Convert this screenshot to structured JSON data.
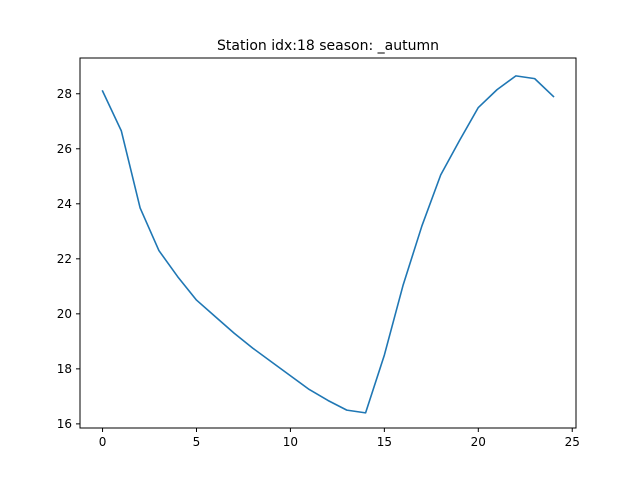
{
  "chart_data": {
    "type": "line",
    "title": "Station idx:18 season: _autumn",
    "xlabel": "",
    "ylabel": "",
    "xlim": [
      -1.2,
      25.2
    ],
    "ylim": [
      15.85,
      29.3
    ],
    "xticks": [
      0,
      5,
      10,
      15,
      20,
      25
    ],
    "yticks": [
      16,
      18,
      20,
      22,
      24,
      26,
      28
    ],
    "grid": false,
    "series": [
      {
        "color": "#1f77b4",
        "x": [
          0,
          1,
          2,
          3,
          4,
          5,
          6,
          7,
          8,
          9,
          10,
          11,
          12,
          13,
          14,
          15,
          16,
          17,
          18,
          19,
          20,
          21,
          22,
          23,
          24
        ],
        "y": [
          28.1,
          26.65,
          23.85,
          22.3,
          21.35,
          20.5,
          19.9,
          19.3,
          18.75,
          18.25,
          17.75,
          17.25,
          16.85,
          16.5,
          16.4,
          18.5,
          21.05,
          23.2,
          25.05,
          26.3,
          27.5,
          28.15,
          28.65,
          28.55,
          27.9
        ]
      }
    ]
  }
}
